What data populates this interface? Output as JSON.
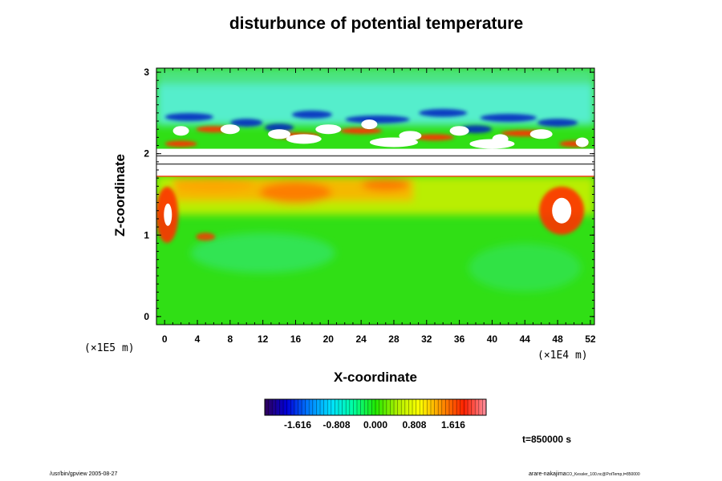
{
  "chart_data": {
    "type": "heatmap",
    "title": "disturbunce of potential temperature",
    "xlabel": "X-coordinate",
    "ylabel": "Z-coordinate",
    "x_scale_label": "(×1E4 m)",
    "y_scale_label": "(×1E5 m)",
    "xlim": [
      -1,
      52.5
    ],
    "ylim": [
      -0.1,
      3.05
    ],
    "x_ticks": [
      "0",
      "4",
      "8",
      "12",
      "16",
      "20",
      "24",
      "28",
      "32",
      "36",
      "40",
      "44",
      "48",
      "52"
    ],
    "y_ticks": [
      "0",
      "1",
      "2",
      "3"
    ],
    "colorbar": {
      "range": [
        -2.3,
        2.3
      ],
      "ticks": [
        "-1.616",
        "-0.808",
        "0.000",
        "0.808",
        "1.616"
      ],
      "tick_values": [
        -1.616,
        -0.808,
        0.0,
        0.808,
        1.616
      ],
      "colors": [
        "#30005a",
        "#0000d8",
        "#0080ff",
        "#00e0ff",
        "#00ffa0",
        "#20e800",
        "#b0f000",
        "#ffff00",
        "#ff9000",
        "#ff2000",
        "#ff90a0"
      ]
    },
    "field_colors": {
      "background": "#30df15",
      "cyan_band": "#5af0e0",
      "warm_band": "#ffb000",
      "hot": "#ff3000",
      "saturated": "#ffffff",
      "cold": "#0020c0"
    },
    "time_label": "t=850000 s"
  },
  "footer": {
    "left": "/usr/bin/gpview 2005-08-27",
    "right_main": "arare-nakajima",
    "right_small": "CO_Kessler_100.nc@PotTemp,t=850000"
  },
  "colors": {
    "text": "#000000",
    "frame": "#000000"
  }
}
